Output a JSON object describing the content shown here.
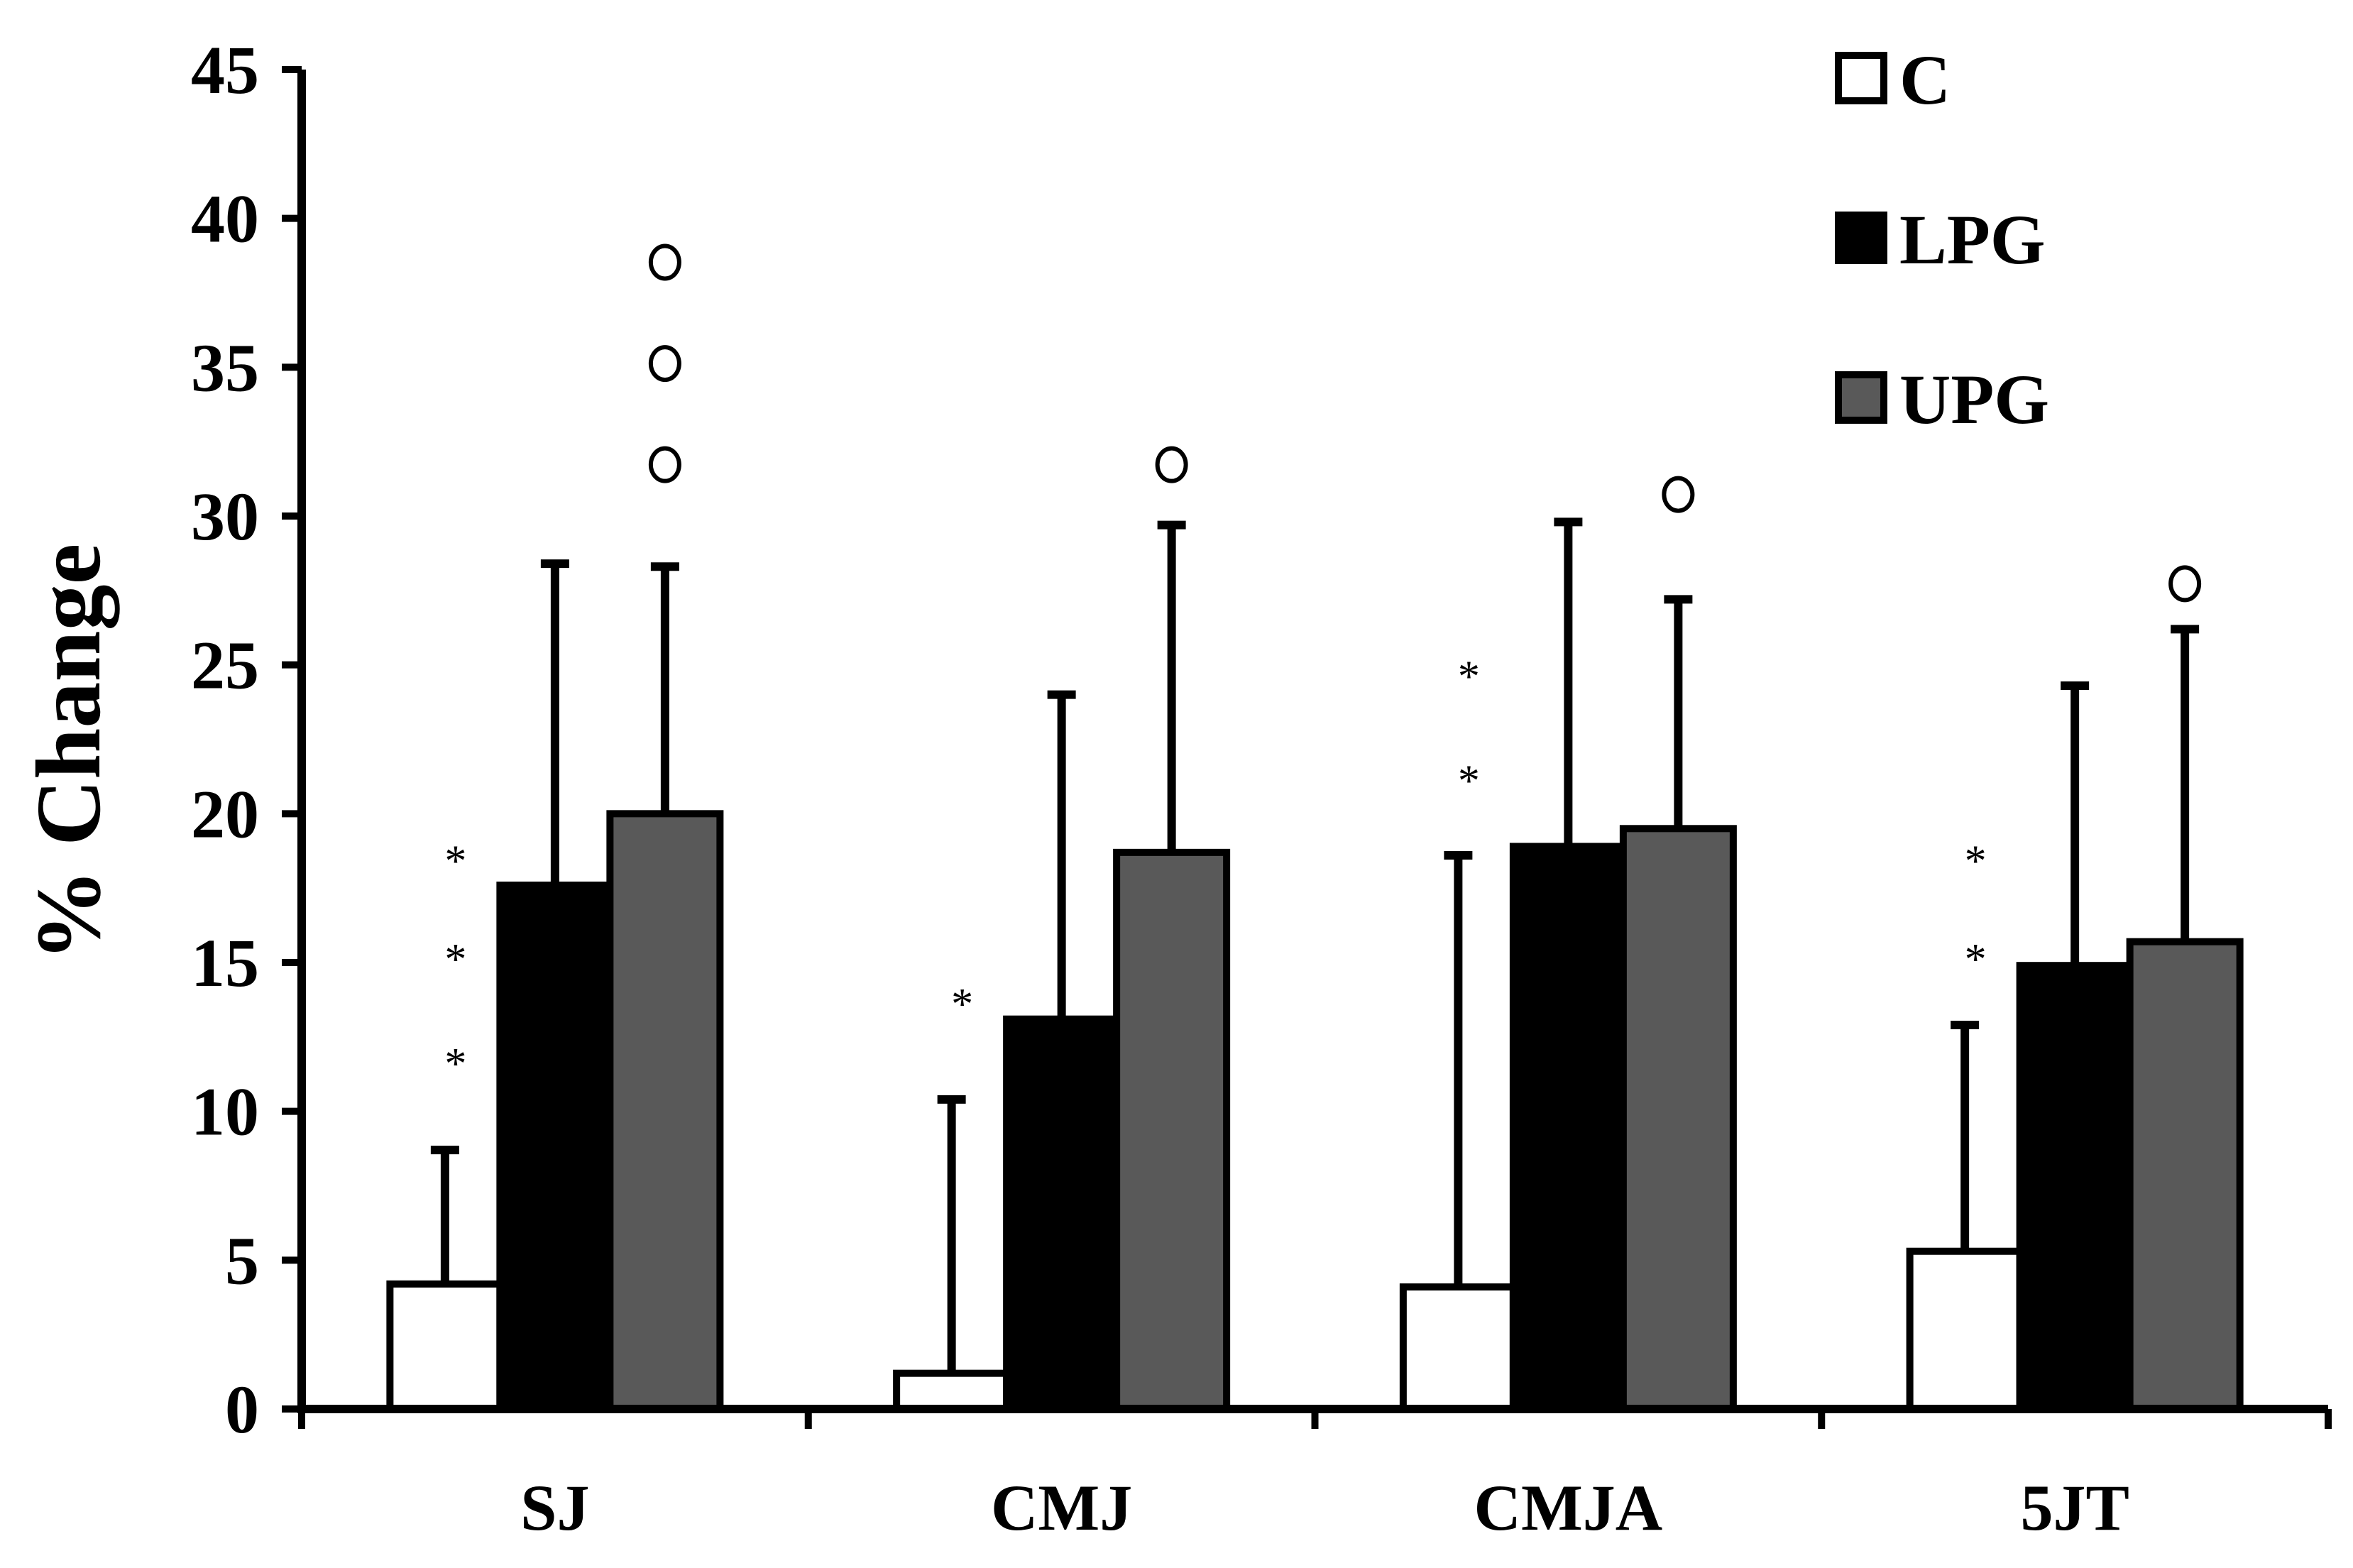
{
  "chart_data": {
    "type": "bar",
    "title": "",
    "xlabel": "",
    "ylabel": "% Change",
    "ylim": [
      0,
      45
    ],
    "yticks": [
      0,
      5,
      10,
      15,
      20,
      25,
      30,
      35,
      40,
      45
    ],
    "grid": false,
    "legend_position": "top-right",
    "categories": [
      "SJ",
      "CMJ",
      "CMJA",
      "5JT"
    ],
    "series": [
      {
        "name": "C",
        "color": "#ffffff",
        "values": [
          4.2,
          1.2,
          4.1,
          5.3
        ],
        "error": [
          4.5,
          9.2,
          14.5,
          7.6
        ]
      },
      {
        "name": "LPG",
        "color": "#000000",
        "values": [
          17.6,
          13.1,
          18.9,
          14.9
        ],
        "error": [
          10.8,
          10.9,
          10.9,
          9.4
        ]
      },
      {
        "name": "UPG",
        "color": "#595959",
        "values": [
          20.0,
          18.7,
          19.5,
          15.7
        ],
        "error": [
          8.3,
          11.0,
          7.7,
          10.5
        ]
      }
    ],
    "annotations": [
      {
        "category": "SJ",
        "series": "C",
        "symbols": [
          "*",
          "*",
          "*"
        ],
        "y": [
          11.5,
          15.0,
          18.3
        ]
      },
      {
        "category": "CMJ",
        "series": "C",
        "symbols": [
          "*"
        ],
        "y": [
          13.5
        ]
      },
      {
        "category": "CMJA",
        "series": "C",
        "symbols": [
          "*",
          "*"
        ],
        "y": [
          21.0,
          24.5
        ]
      },
      {
        "category": "5JT",
        "series": "C",
        "symbols": [
          "*",
          "*"
        ],
        "y": [
          15.0,
          18.3
        ]
      },
      {
        "category": "SJ",
        "series": "UPG",
        "symbols": [
          "o",
          "o",
          "o"
        ],
        "y": [
          31.2,
          34.6,
          38.0
        ]
      },
      {
        "category": "CMJ",
        "series": "UPG",
        "symbols": [
          "o"
        ],
        "y": [
          31.2
        ]
      },
      {
        "category": "CMJA",
        "series": "UPG",
        "symbols": [
          "o"
        ],
        "y": [
          30.2
        ]
      },
      {
        "category": "5JT",
        "series": "UPG",
        "symbols": [
          "o"
        ],
        "y": [
          27.2
        ]
      }
    ]
  }
}
